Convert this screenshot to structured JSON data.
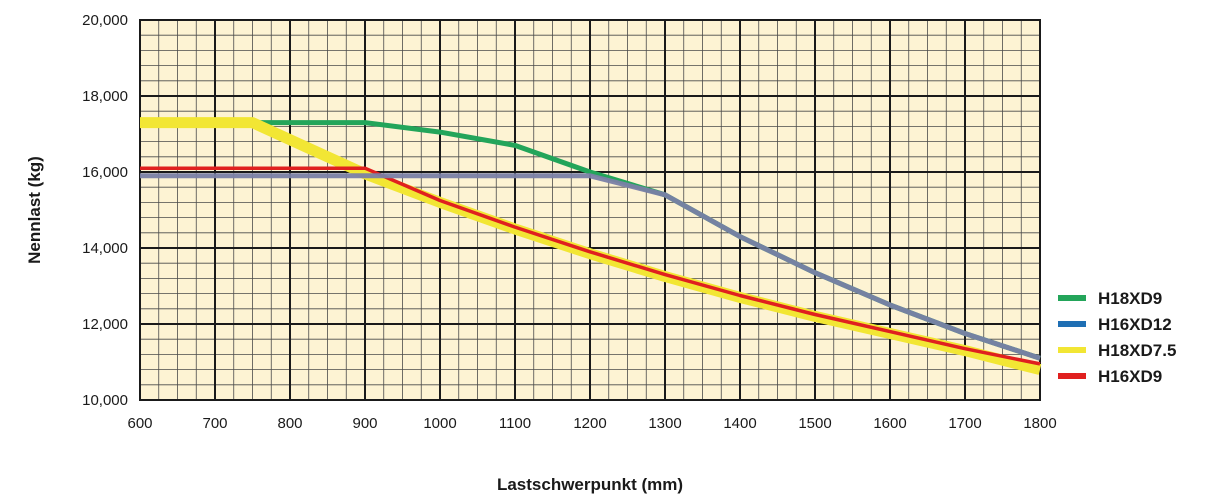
{
  "chart_data": {
    "type": "line",
    "xlabel": "Lastschwerpunkt (mm)",
    "ylabel": "Nennlast (kg)",
    "xlim": [
      600,
      1800
    ],
    "ylim": [
      10000,
      20000
    ],
    "x_ticks": [
      "600",
      "700",
      "800",
      "900",
      "1000",
      "1100",
      "1200",
      "1300",
      "1400",
      "1500",
      "1600",
      "1700",
      "1800"
    ],
    "y_ticks": [
      "10,000",
      "12,000",
      "14,000",
      "16,000",
      "18,000",
      "20,000"
    ],
    "x_tick_values": [
      600,
      700,
      800,
      900,
      1000,
      1100,
      1200,
      1300,
      1400,
      1500,
      1600,
      1700,
      1800
    ],
    "y_tick_values": [
      10000,
      12000,
      14000,
      16000,
      18000,
      20000
    ],
    "grid": true,
    "legend_position": "right",
    "plot_background": "#fdf3d3",
    "series": [
      {
        "name": "H18XD9",
        "color": "#23a55a",
        "x": [
          600,
          900,
          1000,
          1100,
          1200,
          1300,
          1400,
          1500,
          1600,
          1700,
          1800
        ],
        "y": [
          17300,
          17300,
          17050,
          16700,
          16000,
          15400,
          14300,
          13350,
          12500,
          11750,
          11100
        ]
      },
      {
        "name": "H16XD12",
        "color": "#1f6fb4",
        "x": [
          600,
          1200,
          1300,
          1400,
          1500,
          1600,
          1700,
          1800
        ],
        "y": [
          15900,
          15900,
          15400,
          14300,
          13350,
          12500,
          11750,
          11100
        ]
      },
      {
        "name": "H18XD7.5",
        "color": "#f2e634",
        "x": [
          600,
          750,
          900,
          1000,
          1100,
          1200,
          1300,
          1400,
          1500,
          1600,
          1700,
          1800
        ],
        "y": [
          17300,
          17300,
          15950,
          15200,
          14500,
          13850,
          13250,
          12700,
          12200,
          11750,
          11300,
          10800
        ]
      },
      {
        "name": "H16XD9",
        "color": "#e0201f",
        "x": [
          600,
          900,
          1000,
          1100,
          1200,
          1300,
          1400,
          1500,
          1600,
          1700,
          1800
        ],
        "y": [
          16100,
          16100,
          15250,
          14550,
          13900,
          13300,
          12750,
          12250,
          11800,
          11350,
          10950
        ]
      }
    ]
  }
}
